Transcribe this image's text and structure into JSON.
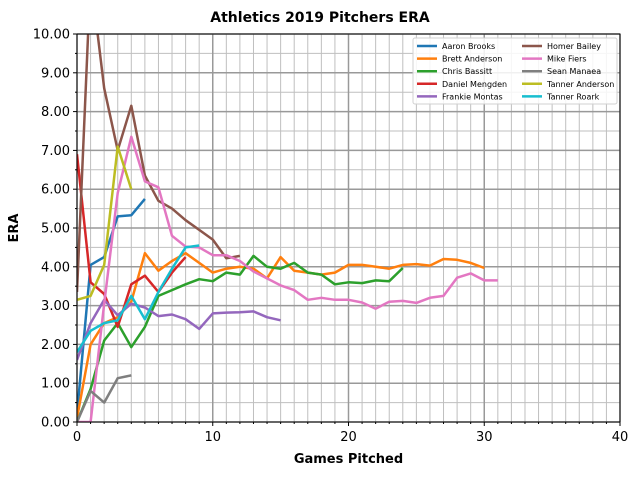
{
  "chart_data": {
    "type": "line",
    "title": "Athletics 2019 Pitchers ERA",
    "xlabel": "Games Pitched",
    "ylabel": "ERA",
    "xlim": [
      0,
      40
    ],
    "ylim": [
      0,
      10
    ],
    "xticks": [
      0,
      10,
      20,
      30,
      40
    ],
    "xtick_labels": [
      "0",
      "10",
      "20",
      "30",
      "40"
    ],
    "yticks": [
      0,
      1,
      2,
      3,
      4,
      5,
      6,
      7,
      8,
      9,
      10
    ],
    "ytick_labels": [
      "0.00",
      "1.00",
      "2.00",
      "3.00",
      "4.00",
      "5.00",
      "6.00",
      "7.00",
      "8.00",
      "9.00",
      "10.00"
    ],
    "grid": true,
    "minor_grid": true,
    "legend_position": "top-right",
    "legend_columns": 2,
    "series": [
      {
        "name": "Aaron Brooks",
        "color": "#1f77b4",
        "x": [
          0,
          1,
          2,
          3,
          4,
          5
        ],
        "values": [
          0.2,
          4.05,
          4.25,
          5.3,
          5.33,
          5.75
        ]
      },
      {
        "name": "Brett Anderson",
        "color": "#ff7f0e",
        "x": [
          0,
          1,
          2,
          3,
          4,
          5,
          6,
          7,
          8,
          9,
          10,
          11,
          12,
          13,
          14,
          15,
          16,
          17,
          18,
          19,
          20,
          21,
          22,
          23,
          24,
          25,
          26,
          27,
          28,
          29,
          30
        ],
        "values": [
          0.1,
          2.0,
          2.55,
          2.7,
          3.1,
          4.35,
          3.9,
          4.15,
          4.35,
          4.1,
          3.85,
          3.95,
          4.0,
          3.95,
          3.7,
          4.25,
          3.9,
          3.85,
          3.8,
          3.85,
          4.05,
          4.05,
          4.0,
          3.95,
          4.05,
          4.07,
          4.03,
          4.2,
          4.18,
          4.1,
          3.97
        ]
      },
      {
        "name": "Chris Bassitt",
        "color": "#2ca02c",
        "x": [
          0,
          1,
          2,
          3,
          4,
          5,
          6,
          7,
          8,
          9,
          10,
          11,
          12,
          13,
          14,
          15,
          16,
          17,
          18,
          19,
          20,
          21,
          22,
          23,
          24
        ],
        "values": [
          0.0,
          0.85,
          2.1,
          2.55,
          1.93,
          2.45,
          3.25,
          3.4,
          3.55,
          3.68,
          3.63,
          3.85,
          3.8,
          4.28,
          4.0,
          3.95,
          4.1,
          3.85,
          3.8,
          3.55,
          3.6,
          3.58,
          3.65,
          3.63,
          3.97
        ]
      },
      {
        "name": "Daniel Mengden",
        "color": "#d62728",
        "x": [
          0,
          1,
          2,
          3,
          4,
          5,
          6,
          7,
          8
        ],
        "values": [
          6.9,
          3.6,
          3.3,
          2.45,
          3.55,
          3.77,
          3.35,
          3.85,
          4.25
        ]
      },
      {
        "name": "Frankie Montas",
        "color": "#9467bd",
        "x": [
          0,
          1,
          2,
          3,
          4,
          5,
          6,
          7,
          8,
          9,
          10,
          11,
          12,
          13,
          14,
          15
        ],
        "values": [
          1.6,
          2.55,
          3.15,
          2.75,
          3.05,
          2.95,
          2.73,
          2.77,
          2.65,
          2.4,
          2.8,
          2.82,
          2.83,
          2.85,
          2.7,
          2.62
        ]
      },
      {
        "name": "Homer Bailey",
        "color": "#8c564b",
        "x": [
          0,
          1,
          2,
          3,
          4,
          5,
          6,
          7,
          8,
          9,
          10,
          11,
          12
        ],
        "values": [
          3.35,
          11.5,
          8.6,
          7.0,
          8.15,
          6.35,
          5.7,
          5.5,
          5.2,
          4.95,
          4.7,
          4.22,
          4.28
        ]
      },
      {
        "name": "Mike Fiers",
        "color": "#e377c2",
        "x": [
          0,
          1,
          2,
          3,
          4,
          5,
          6,
          7,
          8,
          9,
          10,
          11,
          12,
          13,
          14,
          15,
          16,
          17,
          18,
          19,
          20,
          21,
          22,
          23,
          24,
          25,
          26,
          27,
          28,
          29,
          30,
          31
        ],
        "values": [
          0.0,
          0.0,
          3.05,
          5.9,
          7.35,
          6.2,
          6.05,
          4.8,
          4.52,
          4.5,
          4.3,
          4.3,
          4.15,
          3.88,
          3.7,
          3.52,
          3.4,
          3.15,
          3.2,
          3.15,
          3.15,
          3.08,
          2.92,
          3.1,
          3.12,
          3.07,
          3.2,
          3.25,
          3.72,
          3.83,
          3.65,
          3.65
        ]
      },
      {
        "name": "Sean Manaea",
        "color": "#7f7f7f",
        "x": [
          0,
          1,
          2,
          3,
          4
        ],
        "values": [
          0.0,
          0.8,
          0.5,
          1.13,
          1.2
        ]
      },
      {
        "name": "Tanner Anderson",
        "color": "#bcbd22",
        "x": [
          0,
          1,
          2,
          3,
          4
        ],
        "values": [
          3.15,
          3.25,
          4.05,
          7.1,
          6.0
        ]
      },
      {
        "name": "Tanner Roark",
        "color": "#17becf",
        "x": [
          0,
          1,
          2,
          3,
          4,
          5,
          6,
          7,
          8,
          9
        ],
        "values": [
          1.8,
          2.35,
          2.55,
          2.62,
          3.25,
          2.65,
          3.35,
          3.95,
          4.5,
          4.55
        ]
      }
    ]
  }
}
